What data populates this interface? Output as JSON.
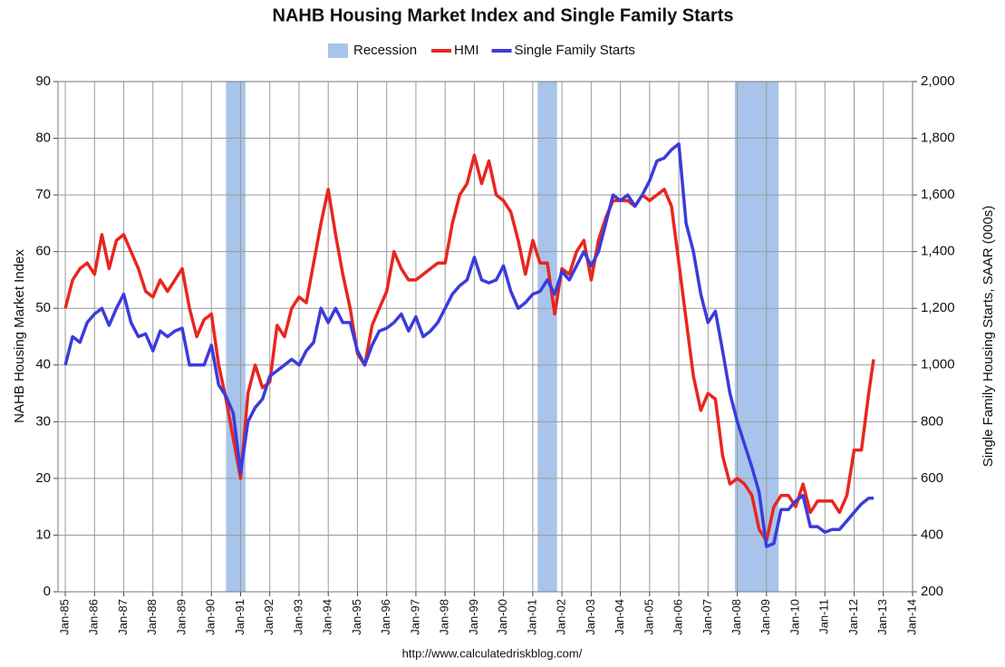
{
  "chart_data": {
    "type": "line",
    "title": "NAHB Housing Market Index and Single Family Starts",
    "y_label": "NAHB Housing Market Index",
    "y2_label": "Single Family Housing Starts, SAAR (000s)",
    "source": "http://www.calculatedriskblog.com/",
    "grid": true,
    "legend": "top",
    "recessions": {
      "name": "Recession",
      "color": "#a9c4ea",
      "periods": [
        {
          "start": "1990-07",
          "end": "1991-03"
        },
        {
          "start": "2001-03",
          "end": "2001-11"
        },
        {
          "start": "2007-12",
          "end": "2009-06"
        }
      ]
    },
    "x": [
      "1985-01",
      "1985-04",
      "1985-07",
      "1985-10",
      "1986-01",
      "1986-04",
      "1986-07",
      "1986-10",
      "1987-01",
      "1987-04",
      "1987-07",
      "1987-10",
      "1988-01",
      "1988-04",
      "1988-07",
      "1988-10",
      "1989-01",
      "1989-04",
      "1989-07",
      "1989-10",
      "1990-01",
      "1990-04",
      "1990-07",
      "1990-10",
      "1991-01",
      "1991-04",
      "1991-07",
      "1991-10",
      "1992-01",
      "1992-04",
      "1992-07",
      "1992-10",
      "1993-01",
      "1993-04",
      "1993-07",
      "1993-10",
      "1994-01",
      "1994-04",
      "1994-07",
      "1994-10",
      "1995-01",
      "1995-04",
      "1995-07",
      "1995-10",
      "1996-01",
      "1996-04",
      "1996-07",
      "1996-10",
      "1997-01",
      "1997-04",
      "1997-07",
      "1997-10",
      "1998-01",
      "1998-04",
      "1998-07",
      "1998-10",
      "1999-01",
      "1999-04",
      "1999-07",
      "1999-10",
      "2000-01",
      "2000-04",
      "2000-07",
      "2000-10",
      "2001-01",
      "2001-04",
      "2001-07",
      "2001-10",
      "2002-01",
      "2002-04",
      "2002-07",
      "2002-10",
      "2003-01",
      "2003-04",
      "2003-07",
      "2003-10",
      "2004-01",
      "2004-04",
      "2004-07",
      "2004-10",
      "2005-01",
      "2005-04",
      "2005-07",
      "2005-10",
      "2006-01",
      "2006-04",
      "2006-07",
      "2006-10",
      "2007-01",
      "2007-04",
      "2007-07",
      "2007-10",
      "2008-01",
      "2008-04",
      "2008-07",
      "2008-10",
      "2009-01",
      "2009-04",
      "2009-07",
      "2009-10",
      "2010-01",
      "2010-04",
      "2010-07",
      "2010-10",
      "2011-01",
      "2011-04",
      "2011-07",
      "2011-10",
      "2012-01",
      "2012-04",
      "2012-07",
      "2012-09"
    ],
    "series": [
      {
        "name": "HMI",
        "color": "#e8261f",
        "axis": "y",
        "values": [
          50,
          55,
          57,
          58,
          56,
          63,
          57,
          62,
          63,
          60,
          57,
          53,
          52,
          55,
          53,
          55,
          57,
          50,
          45,
          48,
          49,
          40,
          34,
          27,
          20,
          35,
          40,
          36,
          37,
          47,
          45,
          50,
          52,
          51,
          58,
          65,
          71,
          63,
          56,
          50,
          42,
          40,
          47,
          50,
          53,
          60,
          57,
          55,
          55,
          56,
          57,
          58,
          58,
          65,
          70,
          72,
          77,
          72,
          76,
          70,
          69,
          67,
          62,
          56,
          62,
          58,
          58,
          49,
          57,
          56,
          60,
          62,
          55,
          62,
          66,
          69,
          69,
          69,
          68,
          70,
          69,
          70,
          71,
          68,
          58,
          48,
          38,
          32,
          35,
          34,
          24,
          19,
          20,
          19,
          17,
          11,
          9,
          15,
          17,
          17,
          15,
          19,
          14,
          16,
          16,
          16,
          14,
          17,
          25,
          25,
          35,
          41
        ]
      },
      {
        "name": "Single Family Starts",
        "color": "#3b3bdc",
        "axis": "y2",
        "values": [
          1000,
          1100,
          1080,
          1150,
          1180,
          1200,
          1140,
          1200,
          1250,
          1150,
          1100,
          1110,
          1050,
          1120,
          1100,
          1120,
          1130,
          1000,
          1000,
          1000,
          1070,
          930,
          890,
          830,
          620,
          800,
          850,
          880,
          960,
          980,
          1000,
          1020,
          1000,
          1050,
          1080,
          1200,
          1150,
          1200,
          1150,
          1150,
          1050,
          1000,
          1070,
          1120,
          1130,
          1150,
          1180,
          1120,
          1170,
          1100,
          1120,
          1150,
          1200,
          1250,
          1280,
          1300,
          1380,
          1300,
          1290,
          1300,
          1350,
          1260,
          1200,
          1220,
          1250,
          1260,
          1300,
          1250,
          1330,
          1300,
          1350,
          1400,
          1350,
          1400,
          1500,
          1600,
          1580,
          1600,
          1560,
          1600,
          1650,
          1720,
          1730,
          1760,
          1780,
          1500,
          1400,
          1250,
          1150,
          1190,
          1050,
          900,
          800,
          720,
          640,
          550,
          360,
          370,
          490,
          490,
          520,
          540,
          430,
          430,
          410,
          420,
          420,
          450,
          480,
          510,
          530,
          530
        ]
      }
    ],
    "xlim": [
      "1984-10",
      "2014-01"
    ],
    "xticks": [
      {
        "value": "1985-01",
        "label": "Jan-85"
      },
      {
        "value": "1986-01",
        "label": "Jan-86"
      },
      {
        "value": "1987-01",
        "label": "Jan-87"
      },
      {
        "value": "1988-01",
        "label": "Jan-88"
      },
      {
        "value": "1989-01",
        "label": "Jan-89"
      },
      {
        "value": "1990-01",
        "label": "Jan-90"
      },
      {
        "value": "1991-01",
        "label": "Jan-91"
      },
      {
        "value": "1992-01",
        "label": "Jan-92"
      },
      {
        "value": "1993-01",
        "label": "Jan-93"
      },
      {
        "value": "1994-01",
        "label": "Jan-94"
      },
      {
        "value": "1995-01",
        "label": "Jan-95"
      },
      {
        "value": "1996-01",
        "label": "Jan-96"
      },
      {
        "value": "1997-01",
        "label": "Jan-97"
      },
      {
        "value": "1998-01",
        "label": "Jan-98"
      },
      {
        "value": "1999-01",
        "label": "Jan-99"
      },
      {
        "value": "2000-01",
        "label": "Jan-00"
      },
      {
        "value": "2001-01",
        "label": "Jan-01"
      },
      {
        "value": "2002-01",
        "label": "Jan-02"
      },
      {
        "value": "2003-01",
        "label": "Jan-03"
      },
      {
        "value": "2004-01",
        "label": "Jan-04"
      },
      {
        "value": "2005-01",
        "label": "Jan-05"
      },
      {
        "value": "2006-01",
        "label": "Jan-06"
      },
      {
        "value": "2007-01",
        "label": "Jan-07"
      },
      {
        "value": "2008-01",
        "label": "Jan-08"
      },
      {
        "value": "2009-01",
        "label": "Jan-09"
      },
      {
        "value": "2010-01",
        "label": "Jan-10"
      },
      {
        "value": "2011-01",
        "label": "Jan-11"
      },
      {
        "value": "2012-01",
        "label": "Jan-12"
      },
      {
        "value": "2013-01",
        "label": "Jan-13"
      },
      {
        "value": "2014-01",
        "label": "Jan-14"
      }
    ],
    "ylim": [
      0,
      90
    ],
    "yticks": [
      0,
      10,
      20,
      30,
      40,
      50,
      60,
      70,
      80,
      90
    ],
    "y2lim": [
      200,
      2000
    ],
    "y2ticks": [
      200,
      400,
      600,
      800,
      {
        "value": 1000,
        "label": "1,000"
      },
      {
        "value": 1200,
        "label": "1,200"
      },
      {
        "value": 1400,
        "label": "1,400"
      },
      {
        "value": 1600,
        "label": "1,600"
      },
      {
        "value": 1800,
        "label": "1,800"
      },
      {
        "value": 2000,
        "label": "2,000"
      }
    ]
  }
}
